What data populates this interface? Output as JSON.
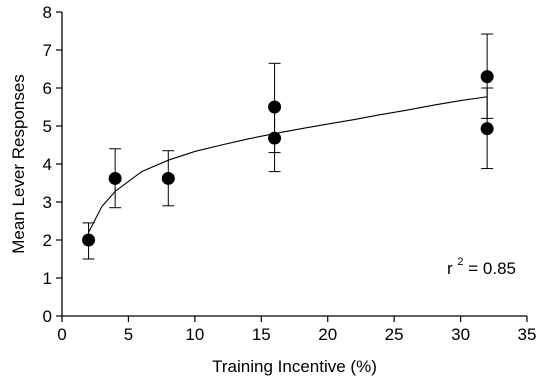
{
  "chart_data": {
    "type": "scatter",
    "title": "",
    "xlabel": "Training Incentive (%)",
    "ylabel": "Mean Lever Responses",
    "xlim": [
      0,
      35
    ],
    "ylim": [
      0,
      8
    ],
    "xticks": [
      0,
      5,
      10,
      15,
      20,
      25,
      30,
      35
    ],
    "yticks": [
      0,
      1,
      2,
      3,
      4,
      5,
      6,
      7,
      8
    ],
    "grid": false,
    "legend": "none",
    "points": [
      {
        "x": 2,
        "y": 2.0,
        "err_low": 1.5,
        "err_high": 2.45
      },
      {
        "x": 4,
        "y": 3.62,
        "err_low": 2.85,
        "err_high": 4.4
      },
      {
        "x": 8,
        "y": 3.62,
        "err_low": 2.9,
        "err_high": 4.35
      },
      {
        "x": 16,
        "y": 5.5,
        "err_low": 4.3,
        "err_high": 6.65
      },
      {
        "x": 16,
        "y": 4.68,
        "err_low": 3.8,
        "err_high": 5.55
      },
      {
        "x": 32,
        "y": 6.3,
        "err_low": 5.2,
        "err_high": 7.42
      },
      {
        "x": 32,
        "y": 4.93,
        "err_low": 3.88,
        "err_high": 6.0
      }
    ],
    "fit": {
      "type": "logarithmic",
      "x": [
        2,
        3,
        4,
        6,
        8,
        10,
        12,
        14,
        16,
        18,
        20,
        22,
        24,
        26,
        28,
        30,
        32
      ],
      "y": [
        2.2,
        2.88,
        3.28,
        3.8,
        4.1,
        4.33,
        4.5,
        4.66,
        4.8,
        4.93,
        5.05,
        5.17,
        5.3,
        5.42,
        5.55,
        5.67,
        5.77
      ]
    },
    "annotation": {
      "base": "r",
      "sup": "2",
      "rest": " = 0.85"
    }
  }
}
